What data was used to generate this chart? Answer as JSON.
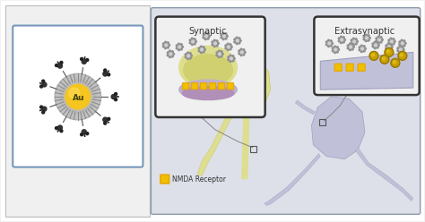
{
  "bg_color": "#f2f2f2",
  "outer_bg": "#f7f7f7",
  "left_panel_bg": "#f5f5f5",
  "left_panel_inner_bg": "#efefef",
  "left_panel_border": "#7799bb",
  "right_panel_bg": "#dde0e8",
  "au_color": "#f5c520",
  "au_label": "Au",
  "synaptic_label": "Synaptic",
  "extrasynaptic_label": "Extrasynaptic",
  "nmda_label": "NMDA Receptor",
  "neuron_yellow": "#dede90",
  "neuron_yellow_dark": "#c8c860",
  "neuron_lavender": "#c0c0d8",
  "neuron_lavender_dark": "#a0a0c0",
  "synapse_purple": "#c0b0cc",
  "dot_gray": "#c0c0c0",
  "dot_white": "#e8e8e8",
  "gold_nanoparticle": "#c8a000",
  "gold_nanoparticle_light": "#e0c020",
  "nmda_box_color": "#e8a800",
  "spine_line_color": "#aaaaaa",
  "inset_bg": "#f0f0f0",
  "inset_border": "#333333"
}
